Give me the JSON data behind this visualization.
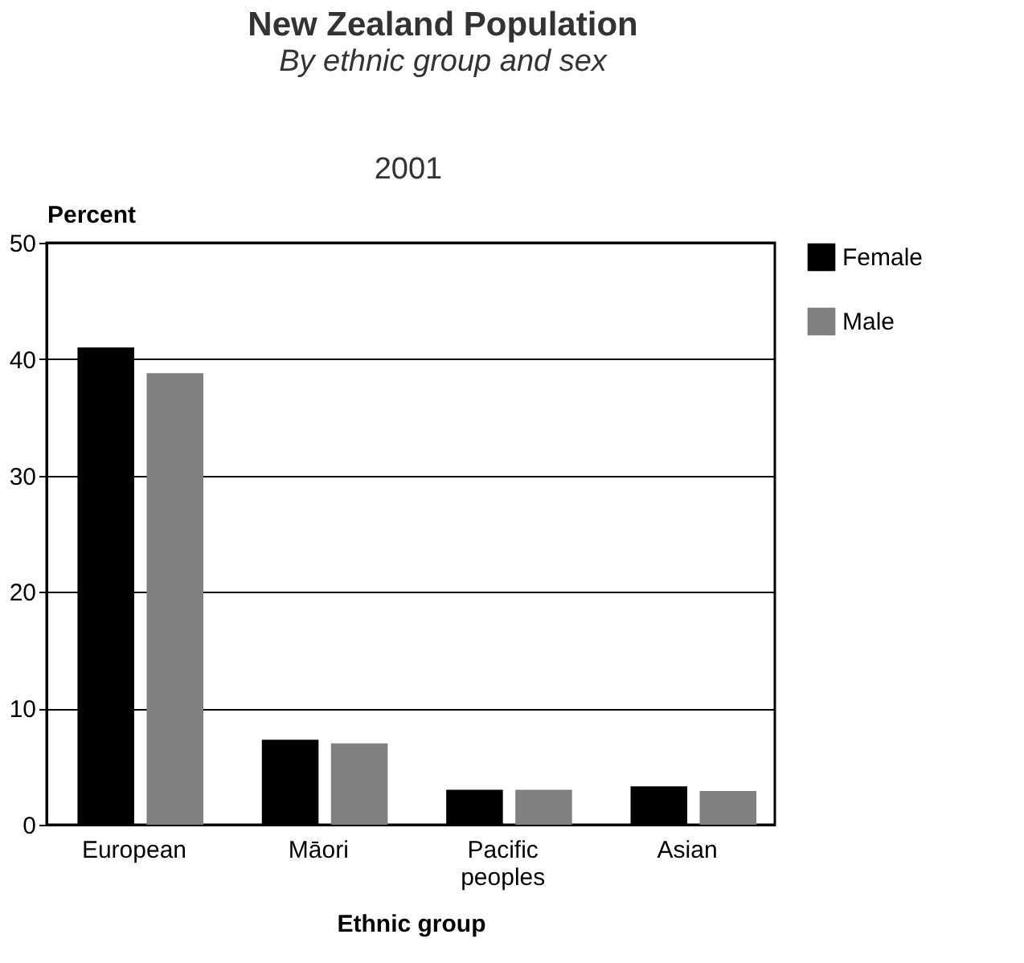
{
  "chart_data": {
    "type": "bar",
    "title": "New Zealand Population",
    "subtitle": "By ethnic group and sex",
    "annotations": [
      "2001"
    ],
    "xlabel": "Ethnic group",
    "ylabel": "Percent",
    "categories": [
      "European",
      "Māori",
      "Pacific peoples",
      "Asian"
    ],
    "series": [
      {
        "name": "Female",
        "color": "#000000",
        "values": [
          41.0,
          7.3,
          3.0,
          3.3
        ]
      },
      {
        "name": "Male",
        "color": "#808080",
        "values": [
          38.8,
          7.0,
          3.0,
          2.9
        ]
      }
    ],
    "ylim": [
      0,
      50
    ],
    "yticks": [
      0,
      10,
      20,
      30,
      40,
      50
    ],
    "grid": "y",
    "legend": "right"
  }
}
